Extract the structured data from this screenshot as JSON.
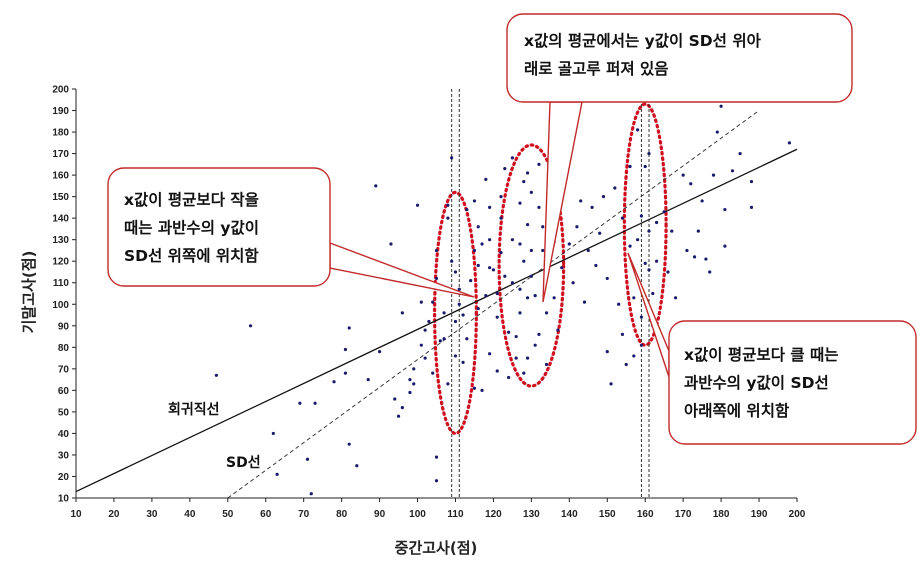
{
  "chart_data": {
    "type": "scatter",
    "title": "",
    "xlabel": "중간고사(점)",
    "ylabel": "기말고사(점)",
    "xlim": [
      10,
      200
    ],
    "ylim": [
      10,
      200
    ],
    "x_ticks": [
      10,
      20,
      30,
      40,
      50,
      60,
      70,
      80,
      90,
      100,
      110,
      120,
      130,
      140,
      150,
      160,
      170,
      180,
      190,
      200
    ],
    "y_ticks": [
      10,
      20,
      30,
      40,
      50,
      60,
      70,
      80,
      90,
      100,
      110,
      120,
      130,
      140,
      150,
      160,
      170,
      180,
      190,
      200
    ],
    "grid": false,
    "regression_line": {
      "label": "회귀직선",
      "points": [
        [
          10,
          13
        ],
        [
          200,
          172
        ]
      ]
    },
    "sd_line": {
      "label": "SD선",
      "points": [
        [
          50,
          10
        ],
        [
          190,
          190
        ]
      ]
    },
    "vertical_guides": [
      109,
      111,
      159,
      161
    ],
    "highlight_ellipses": [
      {
        "cx": 110,
        "cy": 96,
        "rx": 5.5,
        "ry": 56
      },
      {
        "cx": 130,
        "cy": 118,
        "rx": 8.5,
        "ry": 56
      },
      {
        "cx": 160,
        "cy": 137,
        "rx": 5.5,
        "ry": 56
      }
    ],
    "callouts": [
      {
        "lines": [
          "x값의 평균에서는 y값이 SD선 위아",
          "래로 골고루 퍼져 있음"
        ]
      },
      {
        "lines": [
          "x값이 평균보다 작을",
          "때는 과반수의 y값이",
          "SD선 위쪽에 위치함"
        ]
      },
      {
        "lines": [
          "x값이 평균보다 클 때는",
          "과반수의 y값이 SD선",
          "아래쪽에 위치함"
        ]
      }
    ],
    "points": [
      [
        47,
        67
      ],
      [
        56,
        90
      ],
      [
        62,
        40
      ],
      [
        63,
        21
      ],
      [
        69,
        54
      ],
      [
        71,
        28
      ],
      [
        72,
        12
      ],
      [
        73,
        54
      ],
      [
        78,
        64
      ],
      [
        81,
        68
      ],
      [
        81,
        79
      ],
      [
        82,
        35
      ],
      [
        82,
        89
      ],
      [
        84,
        25
      ],
      [
        87,
        65
      ],
      [
        89,
        155
      ],
      [
        90,
        78
      ],
      [
        93,
        128
      ],
      [
        94,
        56
      ],
      [
        95,
        48
      ],
      [
        96,
        52
      ],
      [
        96,
        96
      ],
      [
        98,
        59
      ],
      [
        98,
        65
      ],
      [
        99,
        63
      ],
      [
        99,
        70
      ],
      [
        100,
        146
      ],
      [
        101,
        101
      ],
      [
        101,
        81
      ],
      [
        102,
        88
      ],
      [
        102,
        75
      ],
      [
        103,
        92
      ],
      [
        104,
        101
      ],
      [
        104,
        68
      ],
      [
        105,
        125
      ],
      [
        105,
        112
      ],
      [
        105,
        29
      ],
      [
        105,
        18
      ],
      [
        106,
        83
      ],
      [
        106,
        108
      ],
      [
        107,
        96
      ],
      [
        107,
        84
      ],
      [
        108,
        146
      ],
      [
        108,
        140
      ],
      [
        108,
        63
      ],
      [
        109,
        168
      ],
      [
        109,
        120
      ],
      [
        110,
        92
      ],
      [
        110,
        115
      ],
      [
        110,
        76
      ],
      [
        111,
        100
      ],
      [
        111,
        107
      ],
      [
        112,
        95
      ],
      [
        112,
        73
      ],
      [
        113,
        144
      ],
      [
        113,
        84
      ],
      [
        114,
        111
      ],
      [
        115,
        148
      ],
      [
        115,
        125
      ],
      [
        115,
        61
      ],
      [
        116,
        136
      ],
      [
        116,
        118
      ],
      [
        116,
        98
      ],
      [
        117,
        128
      ],
      [
        117,
        60
      ],
      [
        118,
        158
      ],
      [
        118,
        104
      ],
      [
        119,
        145
      ],
      [
        119,
        130
      ],
      [
        119,
        117
      ],
      [
        119,
        77
      ],
      [
        120,
        116
      ],
      [
        121,
        105
      ],
      [
        121,
        94
      ],
      [
        121,
        69
      ],
      [
        122,
        150
      ],
      [
        122,
        124
      ],
      [
        122,
        140
      ],
      [
        123,
        163
      ],
      [
        123,
        113
      ],
      [
        124,
        87
      ],
      [
        124,
        66
      ],
      [
        125,
        168
      ],
      [
        125,
        130
      ],
      [
        125,
        110
      ],
      [
        126,
        85
      ],
      [
        126,
        75
      ],
      [
        127,
        147
      ],
      [
        127,
        128
      ],
      [
        127,
        107
      ],
      [
        127,
        96
      ],
      [
        128,
        157
      ],
      [
        128,
        120
      ],
      [
        128,
        68
      ],
      [
        129,
        161
      ],
      [
        129,
        137
      ],
      [
        129,
        103
      ],
      [
        129,
        75
      ],
      [
        130,
        152
      ],
      [
        130,
        125
      ],
      [
        130,
        113
      ],
      [
        131,
        104
      ],
      [
        131,
        81
      ],
      [
        132,
        165
      ],
      [
        132,
        145
      ],
      [
        132,
        86
      ],
      [
        133,
        136
      ],
      [
        133,
        125
      ],
      [
        134,
        112
      ],
      [
        134,
        96
      ],
      [
        134,
        72
      ],
      [
        135,
        170
      ],
      [
        135,
        155
      ],
      [
        135,
        121
      ],
      [
        136,
        129
      ],
      [
        136,
        103
      ],
      [
        137,
        88
      ],
      [
        138,
        117
      ],
      [
        139,
        166
      ],
      [
        140,
        128
      ],
      [
        141,
        110
      ],
      [
        142,
        136
      ],
      [
        143,
        148
      ],
      [
        144,
        101
      ],
      [
        145,
        125
      ],
      [
        146,
        145
      ],
      [
        147,
        118
      ],
      [
        148,
        133
      ],
      [
        149,
        150
      ],
      [
        150,
        112
      ],
      [
        150,
        78
      ],
      [
        151,
        63
      ],
      [
        152,
        154
      ],
      [
        153,
        100
      ],
      [
        154,
        140
      ],
      [
        154,
        86
      ],
      [
        155,
        72
      ],
      [
        156,
        127
      ],
      [
        156,
        164
      ],
      [
        157,
        76
      ],
      [
        157,
        103
      ],
      [
        158,
        181
      ],
      [
        158,
        130
      ],
      [
        159,
        141
      ],
      [
        159,
        94
      ],
      [
        159,
        81
      ],
      [
        160,
        164
      ],
      [
        160,
        119
      ],
      [
        161,
        170
      ],
      [
        161,
        134
      ],
      [
        161,
        116
      ],
      [
        162,
        105
      ],
      [
        162,
        90
      ],
      [
        163,
        138
      ],
      [
        163,
        120
      ],
      [
        164,
        85
      ],
      [
        165,
        143
      ],
      [
        166,
        115
      ],
      [
        167,
        134
      ],
      [
        168,
        103
      ],
      [
        170,
        160
      ],
      [
        171,
        125
      ],
      [
        172,
        156
      ],
      [
        173,
        122
      ],
      [
        174,
        134
      ],
      [
        175,
        148
      ],
      [
        176,
        121
      ],
      [
        177,
        115
      ],
      [
        178,
        160
      ],
      [
        179,
        180
      ],
      [
        180,
        192
      ],
      [
        181,
        127
      ],
      [
        181,
        144
      ],
      [
        183,
        162
      ],
      [
        185,
        170
      ],
      [
        188,
        157
      ],
      [
        188,
        145
      ],
      [
        198,
        175
      ]
    ]
  }
}
